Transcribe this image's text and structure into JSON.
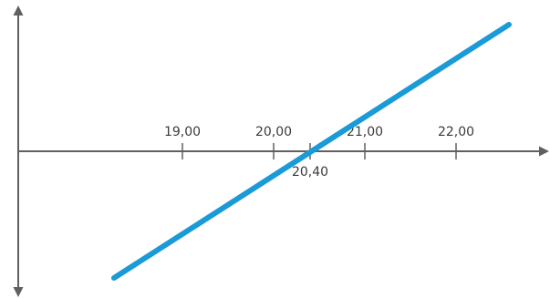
{
  "chart_data": {
    "type": "line",
    "title": "",
    "xlabel": "",
    "ylabel": "",
    "x_ticks": [
      {
        "value": 19.0,
        "label": "19,00",
        "label_position": "above"
      },
      {
        "value": 20.0,
        "label": "20,00",
        "label_position": "above"
      },
      {
        "value": 20.4,
        "label": "20,40",
        "label_position": "below"
      },
      {
        "value": 21.0,
        "label": "21,00",
        "label_position": "above"
      },
      {
        "value": 22.0,
        "label": "22,00",
        "label_position": "above"
      }
    ],
    "series": [
      {
        "color": "#1a9ad6",
        "x": [
          18.25,
          22.58
        ],
        "y": [
          -1.0,
          1.0
        ]
      }
    ],
    "xlim": [
      17.1,
      22.85
    ],
    "ylim": [
      -1.12,
      1.12
    ],
    "axis_color": "#606060",
    "grid": false,
    "legend": "none"
  }
}
